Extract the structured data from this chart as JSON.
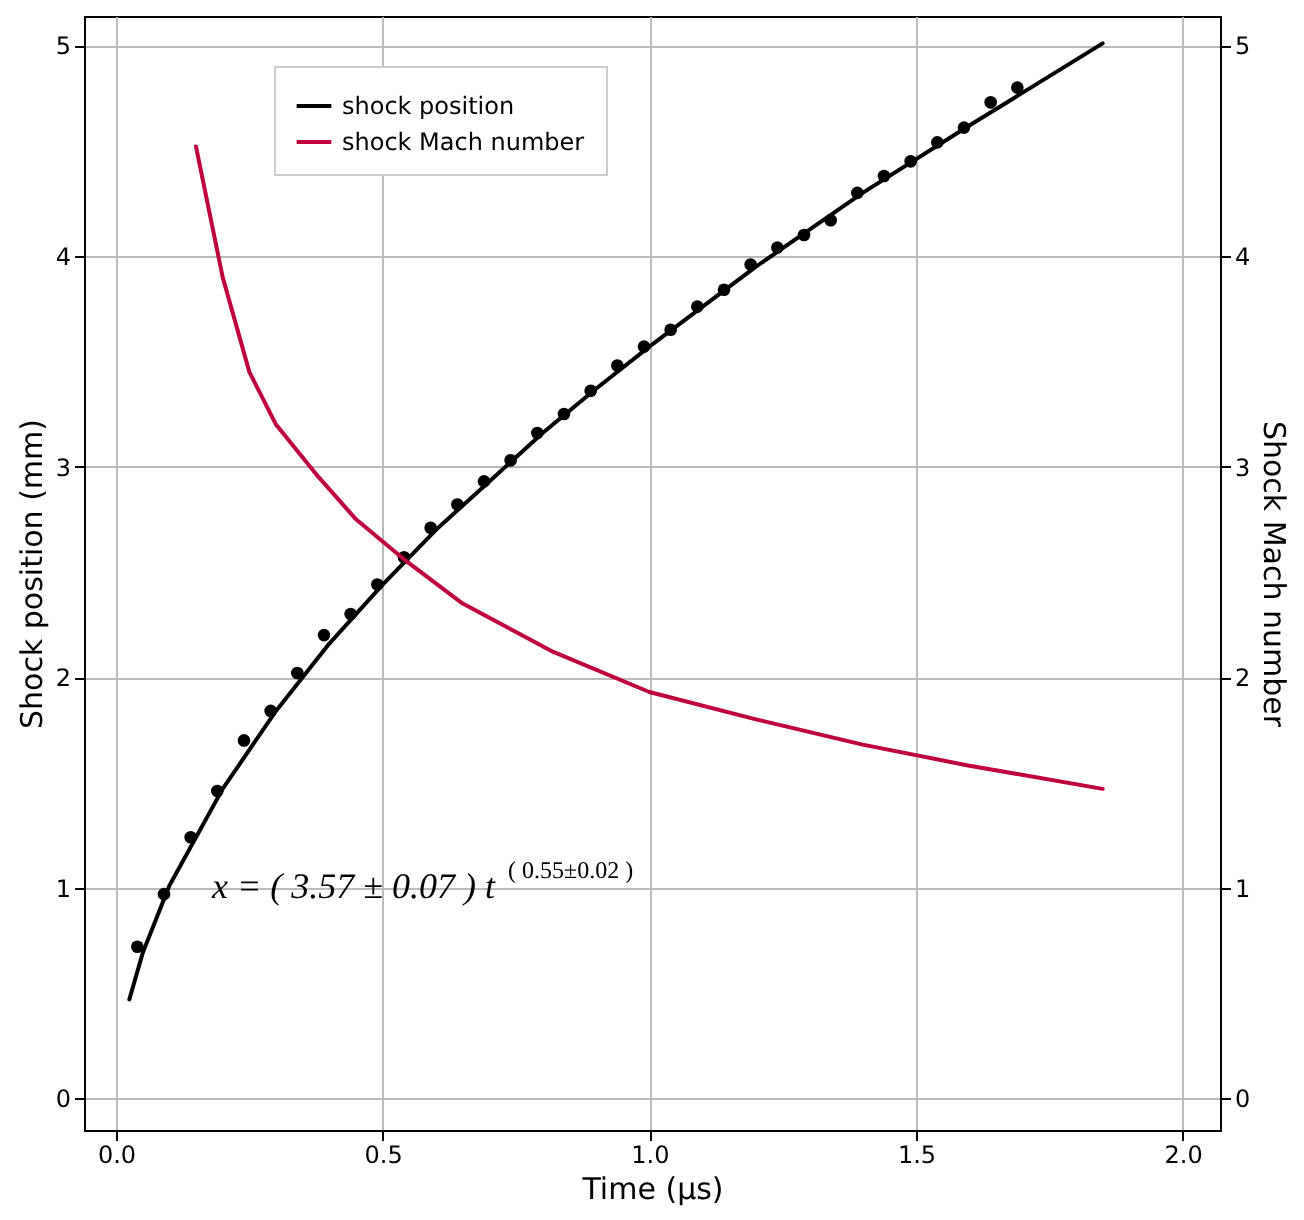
{
  "chart_data": {
    "type": "line",
    "xlabel": "Time (μs)",
    "ylabel": "Shock position (mm)",
    "y2label": "Shock Mach number",
    "xlim": [
      -0.06,
      2.07
    ],
    "xticks": [
      {
        "value": 0,
        "label": "0.0"
      },
      {
        "value": 0.5,
        "label": "0.5"
      },
      {
        "value": 1,
        "label": "1.0"
      },
      {
        "value": 1.5,
        "label": "1.5"
      },
      {
        "value": 2,
        "label": "2.0"
      }
    ],
    "ylim": [
      -0.15,
      5.14
    ],
    "yticks": [
      0,
      1,
      2,
      3,
      4,
      5
    ],
    "y2lim": [
      -0.15,
      5.14
    ],
    "y2ticks": [
      0,
      1,
      2,
      3,
      4,
      5
    ],
    "grid": true,
    "legend": "top left",
    "line_style": "solid",
    "annotations": [
      "x = ( 3.57 ± 0.07 ) t$^{( 0.55±0.02 )}$"
    ],
    "series": [
      {
        "name": "shock position",
        "color": "#000000",
        "x": [
          0.025,
          0.05,
          0.1,
          0.2,
          0.3,
          0.4,
          0.5,
          0.6,
          0.7,
          0.8,
          0.9,
          1.0,
          1.2,
          1.4,
          1.6,
          1.85
        ],
        "values": [
          0.47,
          0.69,
          1.01,
          1.47,
          1.84,
          2.16,
          2.44,
          2.7,
          2.93,
          3.16,
          3.37,
          3.57,
          3.95,
          4.3,
          4.62,
          5.01
        ]
      },
      {
        "type": "scatter",
        "color": "#000000",
        "marker": "circle",
        "x": [
          0.04,
          0.09,
          0.14,
          0.19,
          0.24,
          0.29,
          0.34,
          0.39,
          0.44,
          0.49,
          0.54,
          0.59,
          0.64,
          0.69,
          0.74,
          0.79,
          0.84,
          0.89,
          0.94,
          0.99,
          1.04,
          1.09,
          1.14,
          1.19,
          1.24,
          1.29,
          1.34,
          1.39,
          1.44,
          1.49,
          1.54,
          1.59,
          1.64,
          1.69
        ],
        "values": [
          0.72,
          0.97,
          1.24,
          1.46,
          1.7,
          1.84,
          2.02,
          2.2,
          2.3,
          2.44,
          2.57,
          2.71,
          2.82,
          2.93,
          3.03,
          3.16,
          3.25,
          3.36,
          3.48,
          3.57,
          3.65,
          3.76,
          3.84,
          3.96,
          4.04,
          4.1,
          4.17,
          4.3,
          4.38,
          4.45,
          4.54,
          4.61,
          4.73,
          4.8
        ]
      },
      {
        "name": "shock Mach number",
        "axis": "y2",
        "color": "#c0003c",
        "x": [
          0.15,
          0.2,
          0.25,
          0.3,
          0.38,
          0.45,
          0.54,
          0.65,
          0.82,
          1.0,
          1.2,
          1.4,
          1.6,
          1.85
        ],
        "values": [
          4.52,
          3.9,
          3.45,
          3.2,
          2.95,
          2.75,
          2.56,
          2.35,
          2.12,
          1.93,
          1.8,
          1.68,
          1.58,
          1.47
        ]
      }
    ]
  }
}
